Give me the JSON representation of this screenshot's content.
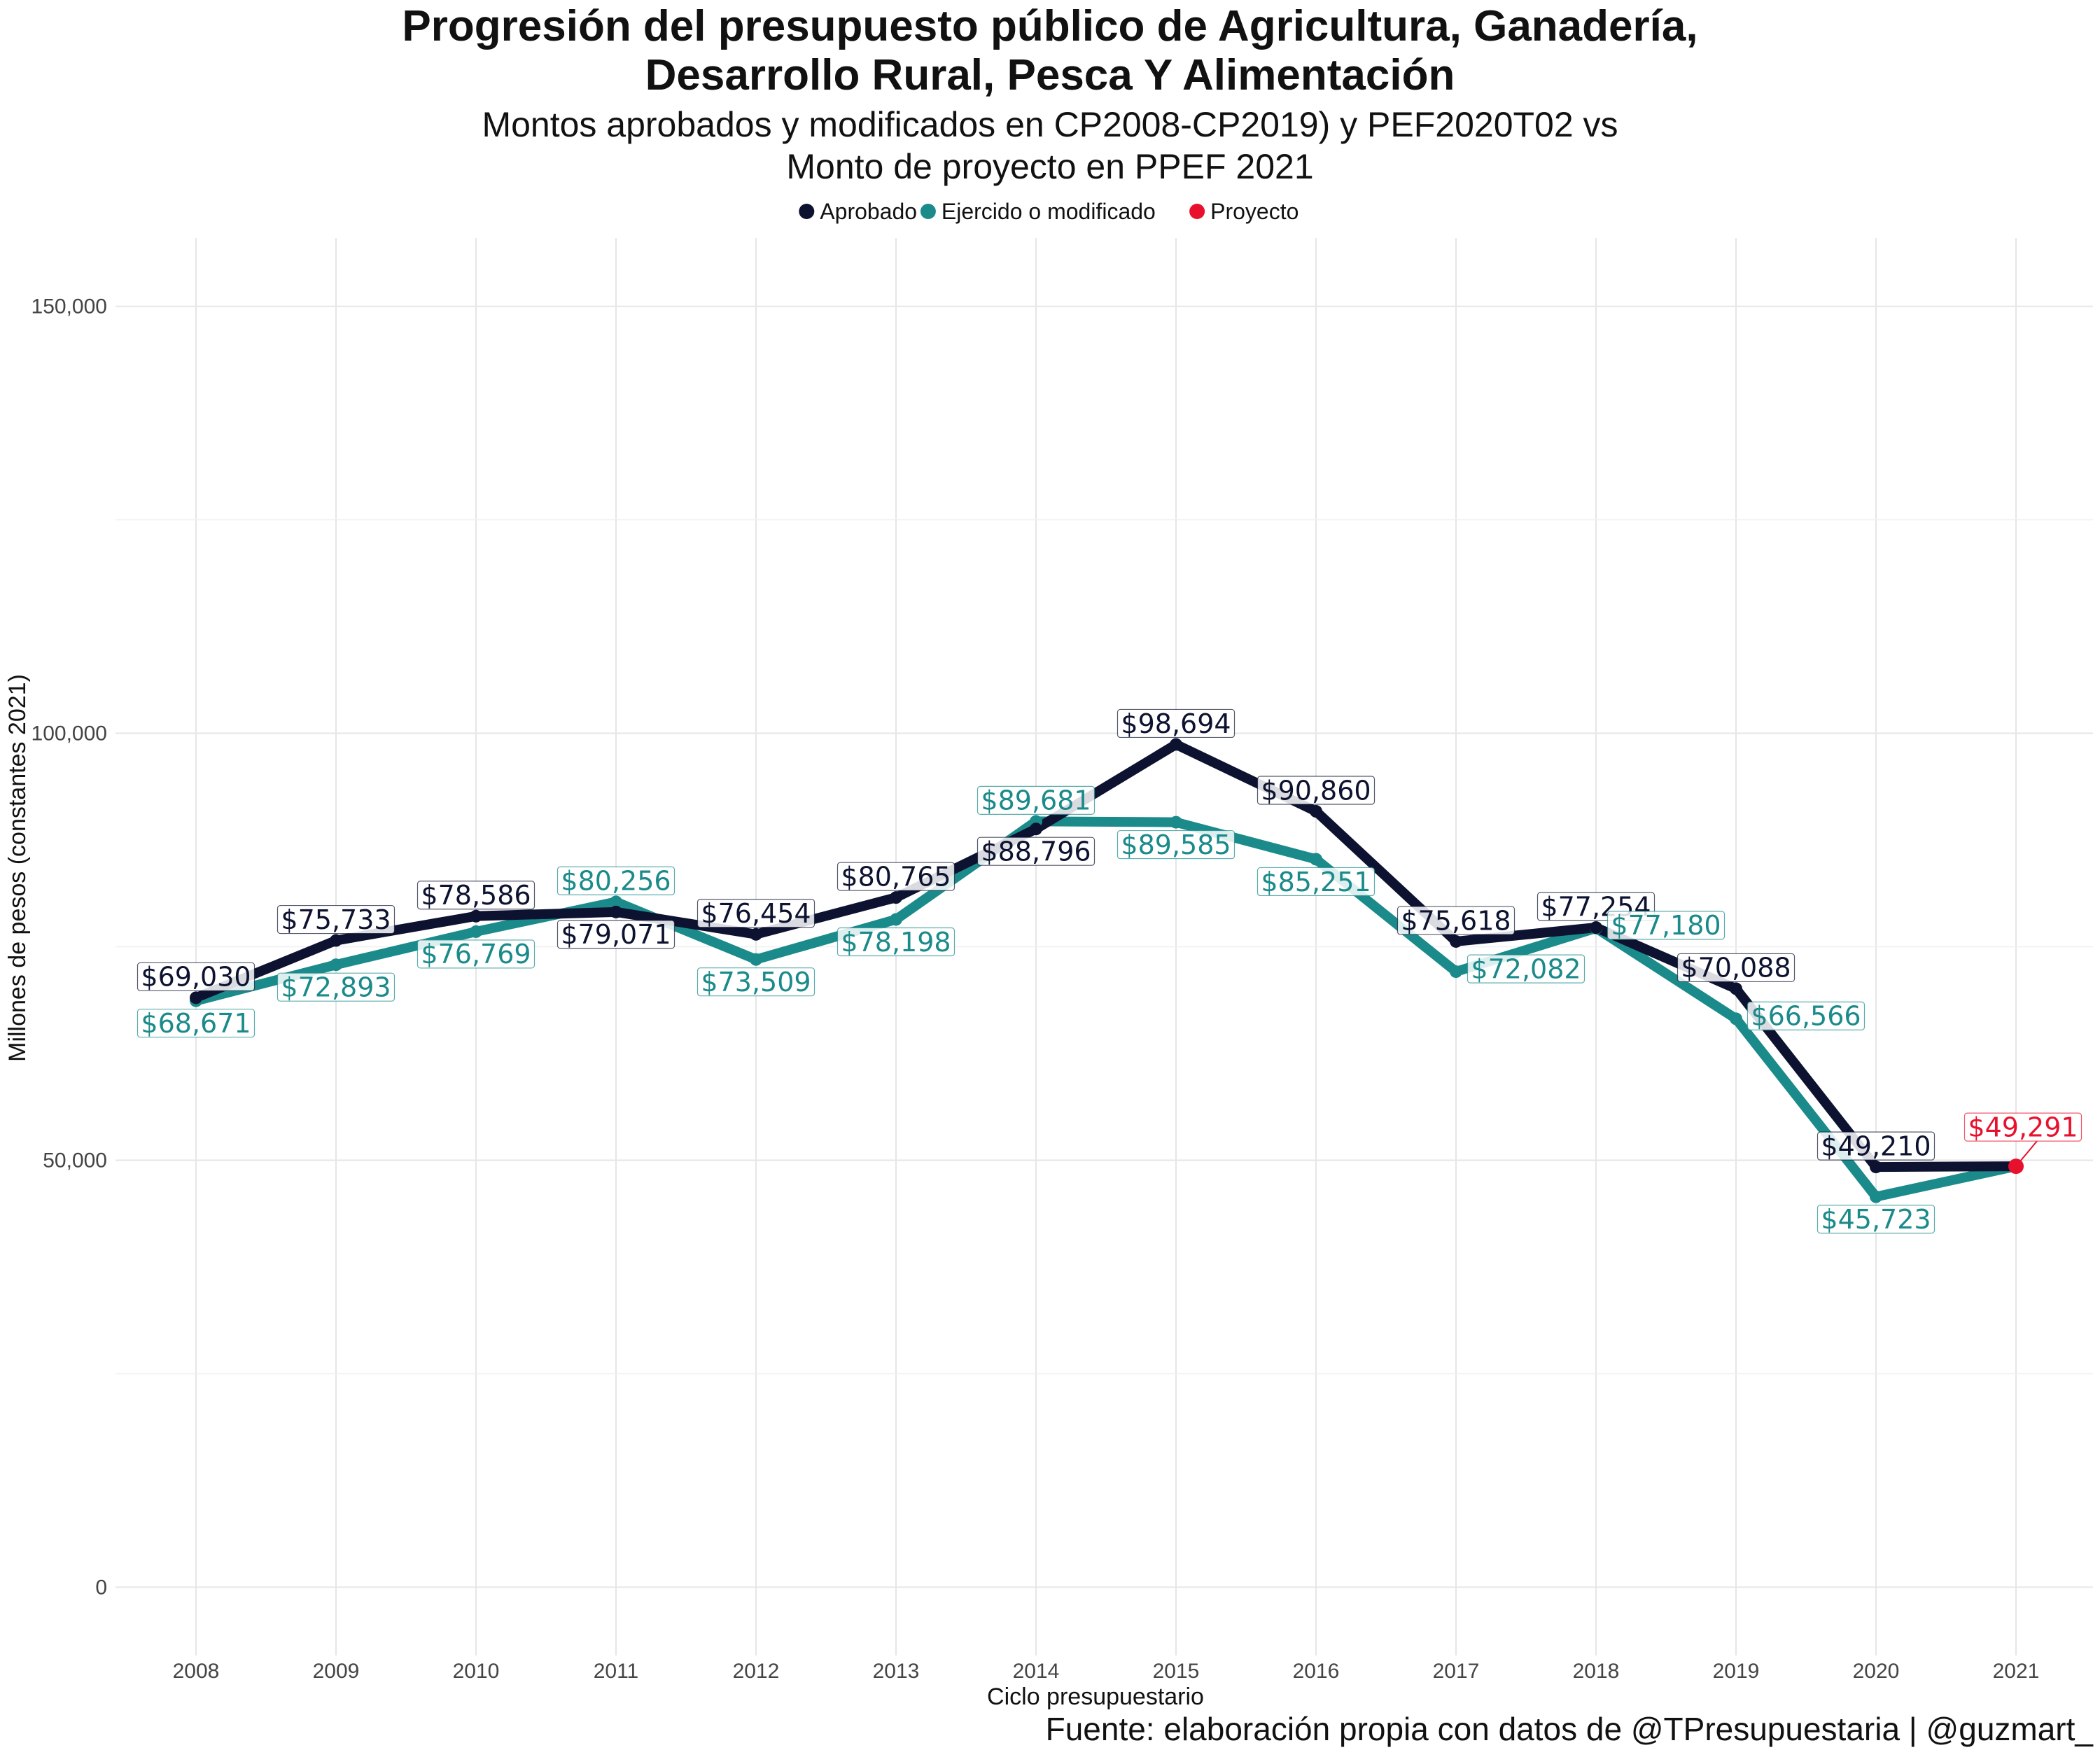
{
  "chart_data": {
    "type": "line",
    "title_lines": [
      "Progresión del presupuesto público de Agricultura, Ganadería,",
      "Desarrollo Rural, Pesca Y Alimentación"
    ],
    "subtitle_lines": [
      "Montos aprobados y modificados en CP2008-CP2019) y PEF2020T02 vs",
      "Monto de proyecto en PPEF 2021"
    ],
    "xlabel": "Ciclo presupuestario",
    "ylabel": "Millones de pesos (constantes 2021)",
    "caption": "Fuente: elaboración propia con datos de @TPresupuestaria | @guzmart_",
    "categories": [
      "2008",
      "2009",
      "2010",
      "2011",
      "2012",
      "2013",
      "2014",
      "2015",
      "2016",
      "2017",
      "2018",
      "2019",
      "2020",
      "2021"
    ],
    "ylim": [
      -8000,
      158000
    ],
    "yticks": [
      0,
      50000,
      100000,
      150000
    ],
    "ytick_labels": [
      "0",
      "50,000",
      "100,000",
      "150,000"
    ],
    "grid": true,
    "legend_position": "top",
    "legend": [
      {
        "label": "Aprobado",
        "color": "#0d1230"
      },
      {
        "label": "Ejercido o modificado",
        "color": "#1b8a8a"
      },
      {
        "label": "Proyecto",
        "color": "#e8112d"
      }
    ],
    "series": [
      {
        "name": "Aprobado",
        "color": "#0d1230",
        "values": [
          69030,
          75733,
          78586,
          79071,
          76454,
          80765,
          88796,
          98694,
          90860,
          75618,
          77254,
          70088,
          49210,
          49291
        ],
        "labels": [
          "$69,030",
          "$75,733",
          "$78,586",
          "$79,071",
          "$76,454",
          "$80,765",
          "$88,796",
          "$98,694",
          "$90,860",
          "$75,618",
          "$77,254",
          "$70,088",
          "$49,210",
          ""
        ],
        "label_pos": [
          "above",
          "above",
          "above",
          "below",
          "above",
          "above",
          "below",
          "above",
          "above",
          "above",
          "above",
          "above",
          "above",
          "none"
        ]
      },
      {
        "name": "Ejercido o modificado",
        "color": "#1b8a8a",
        "values": [
          68671,
          72893,
          76769,
          80256,
          73509,
          78198,
          89681,
          89585,
          85251,
          72082,
          77180,
          66566,
          45723,
          49291
        ],
        "labels": [
          "$68,671",
          "$72,893",
          "$76,769",
          "$80,256",
          "$73,509",
          "$78,198",
          "$89,681",
          "$89,585",
          "$85,251",
          "$72,082",
          "$77,180",
          "$66,566",
          "$45,723",
          ""
        ],
        "label_pos": [
          "below",
          "below",
          "below",
          "above",
          "below",
          "below",
          "above",
          "below",
          "below",
          "right",
          "right",
          "right",
          "below",
          "none"
        ]
      },
      {
        "name": "Proyecto",
        "color": "#e8112d",
        "values": [
          null,
          null,
          null,
          null,
          null,
          null,
          null,
          null,
          null,
          null,
          null,
          null,
          null,
          49291
        ],
        "labels": [
          "",
          "",
          "",
          "",
          "",
          "",
          "",
          "",
          "",
          "",
          "",
          "",
          "",
          "$49,291"
        ],
        "label_pos": [
          "none",
          "none",
          "none",
          "none",
          "none",
          "none",
          "none",
          "none",
          "none",
          "none",
          "none",
          "none",
          "none",
          "above"
        ]
      }
    ]
  }
}
